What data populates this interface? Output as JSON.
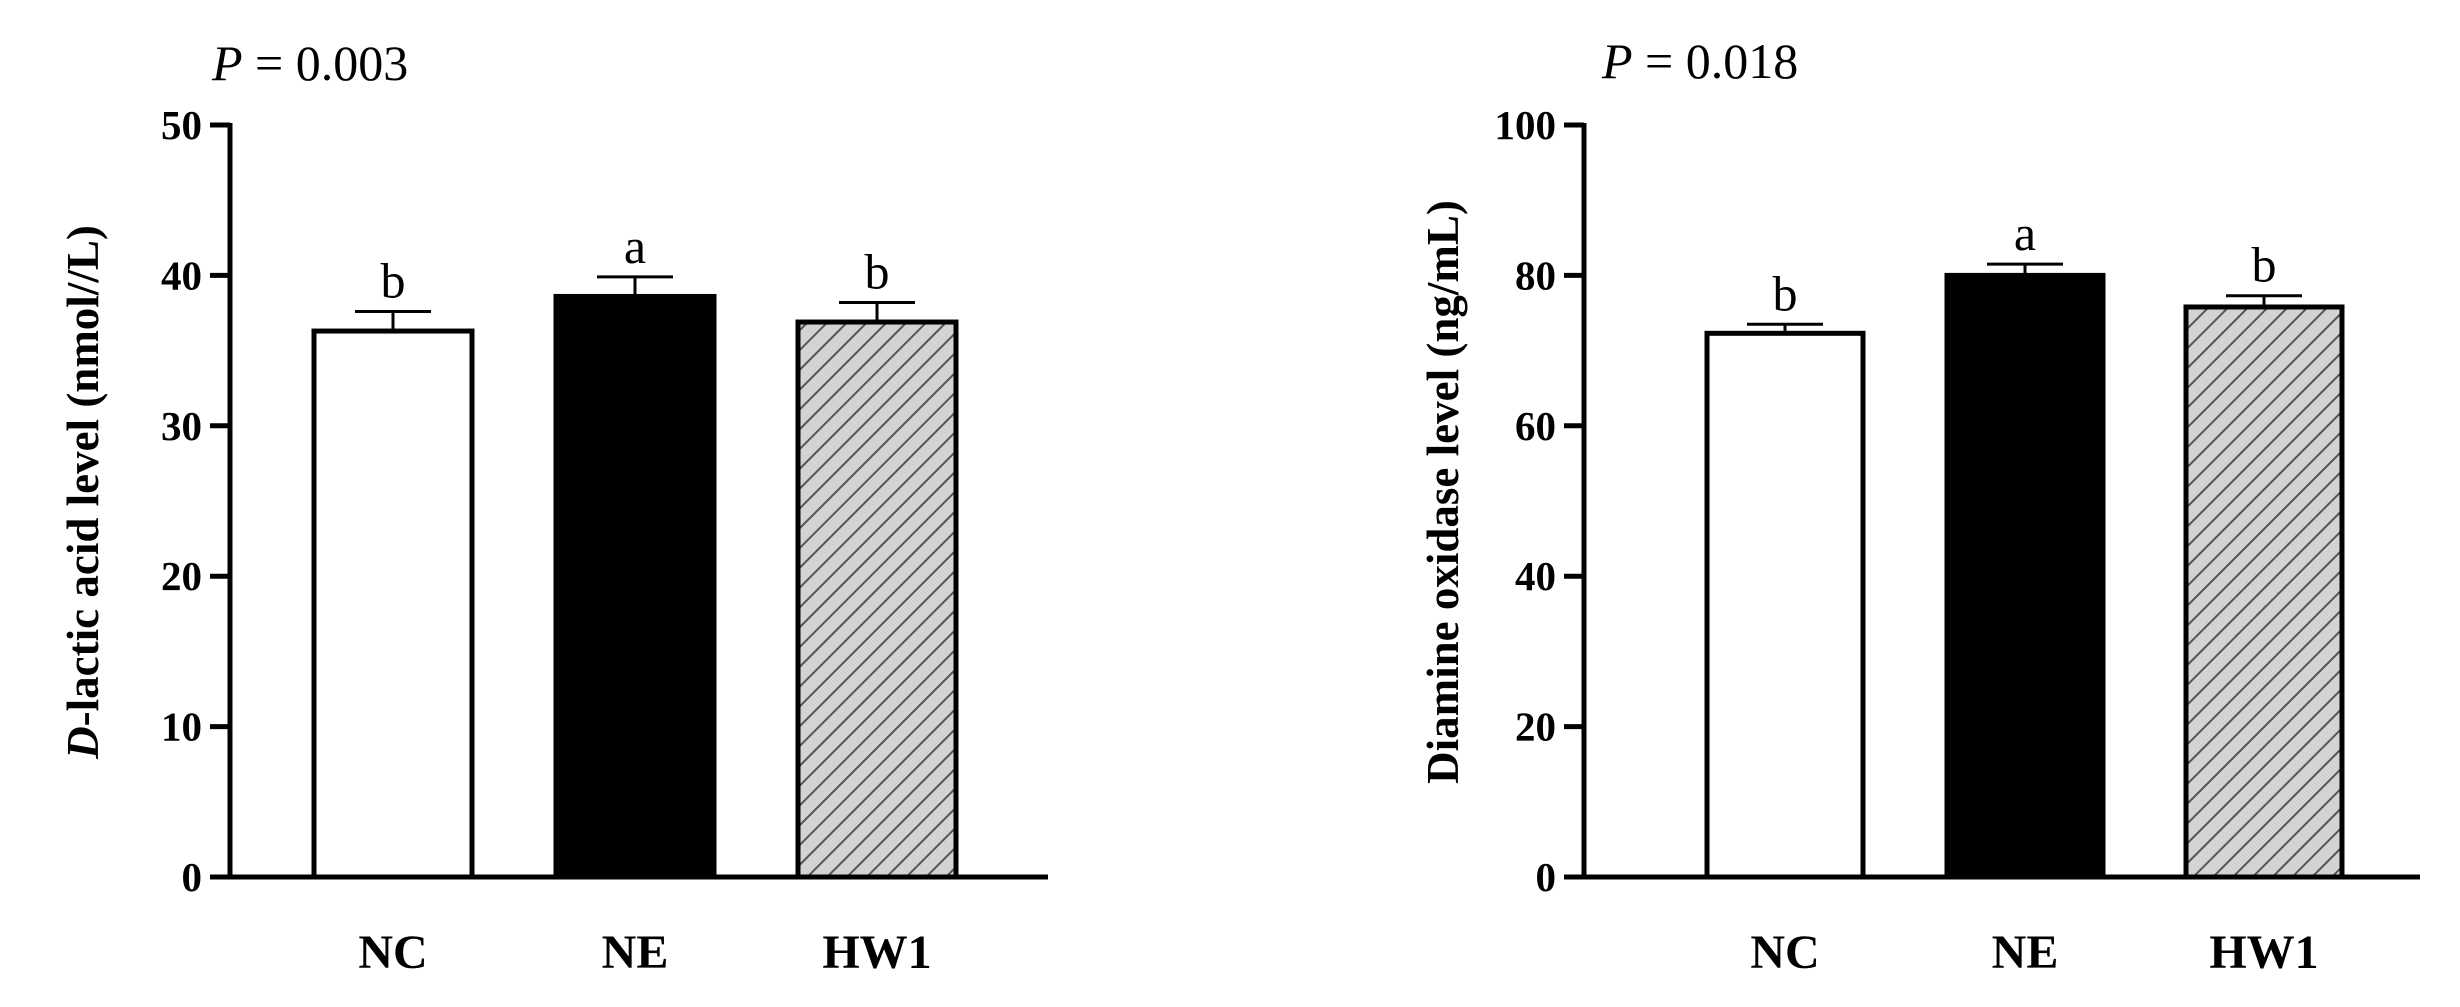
{
  "chart_data": [
    {
      "type": "bar",
      "p_value": {
        "prefix": "P",
        "text": " = 0.003"
      },
      "ylabel": {
        "prefix": "D",
        "text": "-lactic acid level (nmol//L)"
      },
      "categories": [
        "NC",
        "NE",
        "HW1"
      ],
      "values": [
        36.3,
        38.6,
        36.9
      ],
      "errors": [
        1.3,
        1.3,
        1.3
      ],
      "significance": [
        "b",
        "a",
        "b"
      ],
      "fills": [
        "white",
        "black",
        "hatched"
      ],
      "ylim": [
        0,
        50
      ],
      "yticks": [
        0,
        10,
        20,
        30,
        40,
        50
      ],
      "ytick_labels": [
        "0",
        "10",
        "20",
        "30",
        "40",
        "50"
      ]
    },
    {
      "type": "bar",
      "p_value": {
        "prefix": "P",
        "text": " = 0.018"
      },
      "ylabel": {
        "prefix": "",
        "text": "Diamine oxidase level (ng/mL)"
      },
      "categories": [
        "NC",
        "NE",
        "HW1"
      ],
      "values": [
        72.3,
        80.0,
        75.8
      ],
      "errors": [
        1.2,
        1.5,
        1.5
      ],
      "significance": [
        "b",
        "a",
        "b"
      ],
      "fills": [
        "white",
        "black",
        "hatched"
      ],
      "ylim": [
        0,
        100
      ],
      "yticks": [
        0,
        20,
        40,
        60,
        80,
        100
      ],
      "ytick_labels": [
        "0",
        "20",
        "40",
        "60",
        "80",
        "100"
      ]
    }
  ],
  "colors": {
    "axis": "#000000",
    "nc_fill": "#ffffff",
    "ne_fill": "#000000",
    "hatch_bg": "#d3d3d3",
    "hatch_line": "#555555"
  }
}
